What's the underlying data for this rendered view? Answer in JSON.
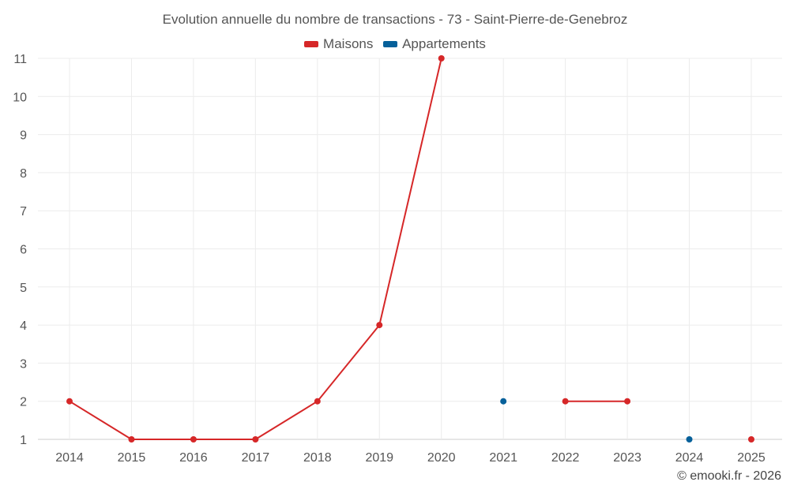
{
  "chart_data": {
    "type": "line",
    "title": "Evolution annuelle du nombre de transactions - 73 - Saint-Pierre-de-Genebroz",
    "categories": [
      "2014",
      "2015",
      "2016",
      "2017",
      "2018",
      "2019",
      "2020",
      "2021",
      "2022",
      "2023",
      "2024",
      "2025"
    ],
    "series": [
      {
        "name": "Maisons",
        "color": "#d62728",
        "values": [
          2,
          1,
          1,
          1,
          2,
          4,
          11,
          null,
          2,
          2,
          null,
          1
        ]
      },
      {
        "name": "Appartements",
        "color": "#06609a",
        "values": [
          null,
          null,
          null,
          null,
          null,
          null,
          null,
          2,
          null,
          null,
          1,
          null
        ]
      }
    ],
    "yticks": [
      1,
      2,
      3,
      4,
      5,
      6,
      7,
      8,
      9,
      10,
      11
    ],
    "ylim": [
      1,
      11
    ],
    "grid": true,
    "legend": "top-center"
  },
  "credit": "© emooki.fr - 2026"
}
